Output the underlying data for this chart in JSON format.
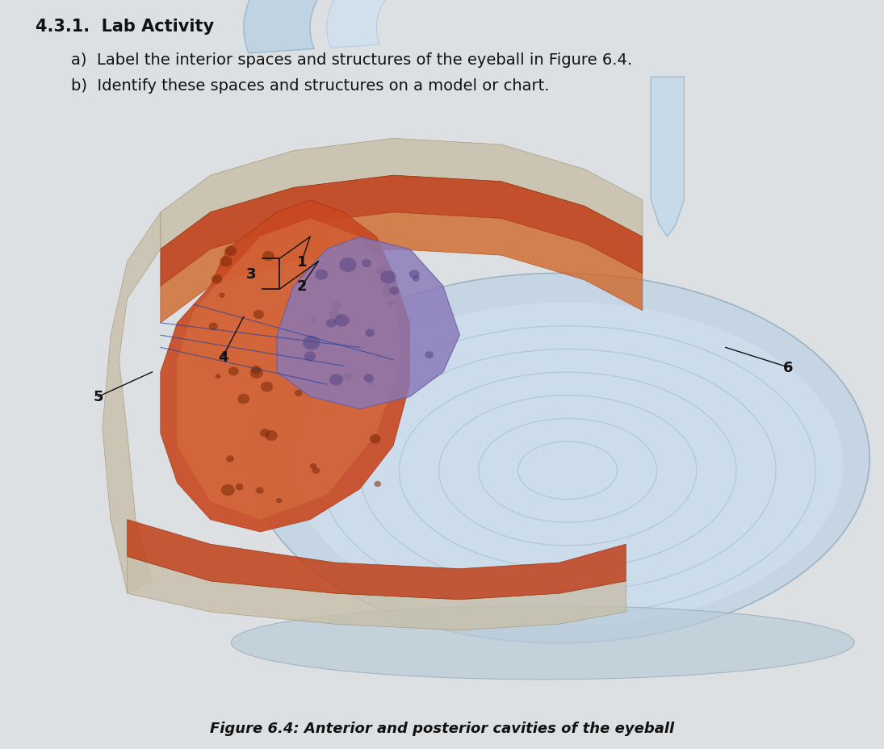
{
  "title": "4.3.1.  Lab Activity",
  "line_a": "a)  Label the interior spaces and structures of the eyeball in Figure 6.4.",
  "line_b": "b)  Identify these spaces and structures on a model or chart.",
  "caption": "Figure 6.4: Anterior and posterior cavities of the eyeball",
  "background_color": "#dde0e3",
  "text_color": "#111111",
  "title_fontsize": 15,
  "body_fontsize": 14,
  "caption_fontsize": 13
}
